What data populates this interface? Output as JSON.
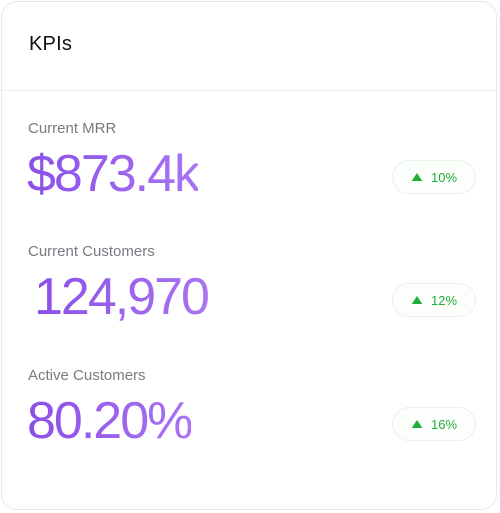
{
  "card": {
    "title": "KPIs"
  },
  "kpis": [
    {
      "label": "Current MRR",
      "value": "$873.4k",
      "change": "10%",
      "trend_icon": "triangle-up-icon"
    },
    {
      "label": "Current Customers",
      "value": "124,970",
      "change": "12%",
      "trend_icon": "triangle-up-icon"
    },
    {
      "label": "Active Customers",
      "value": "80.20%",
      "change": "16%",
      "trend_icon": "triangle-up-icon"
    }
  ],
  "colors": {
    "value_gradient_start": "#8b4fe8",
    "value_gradient_end": "#a874f2",
    "positive": "#1fae3a"
  }
}
